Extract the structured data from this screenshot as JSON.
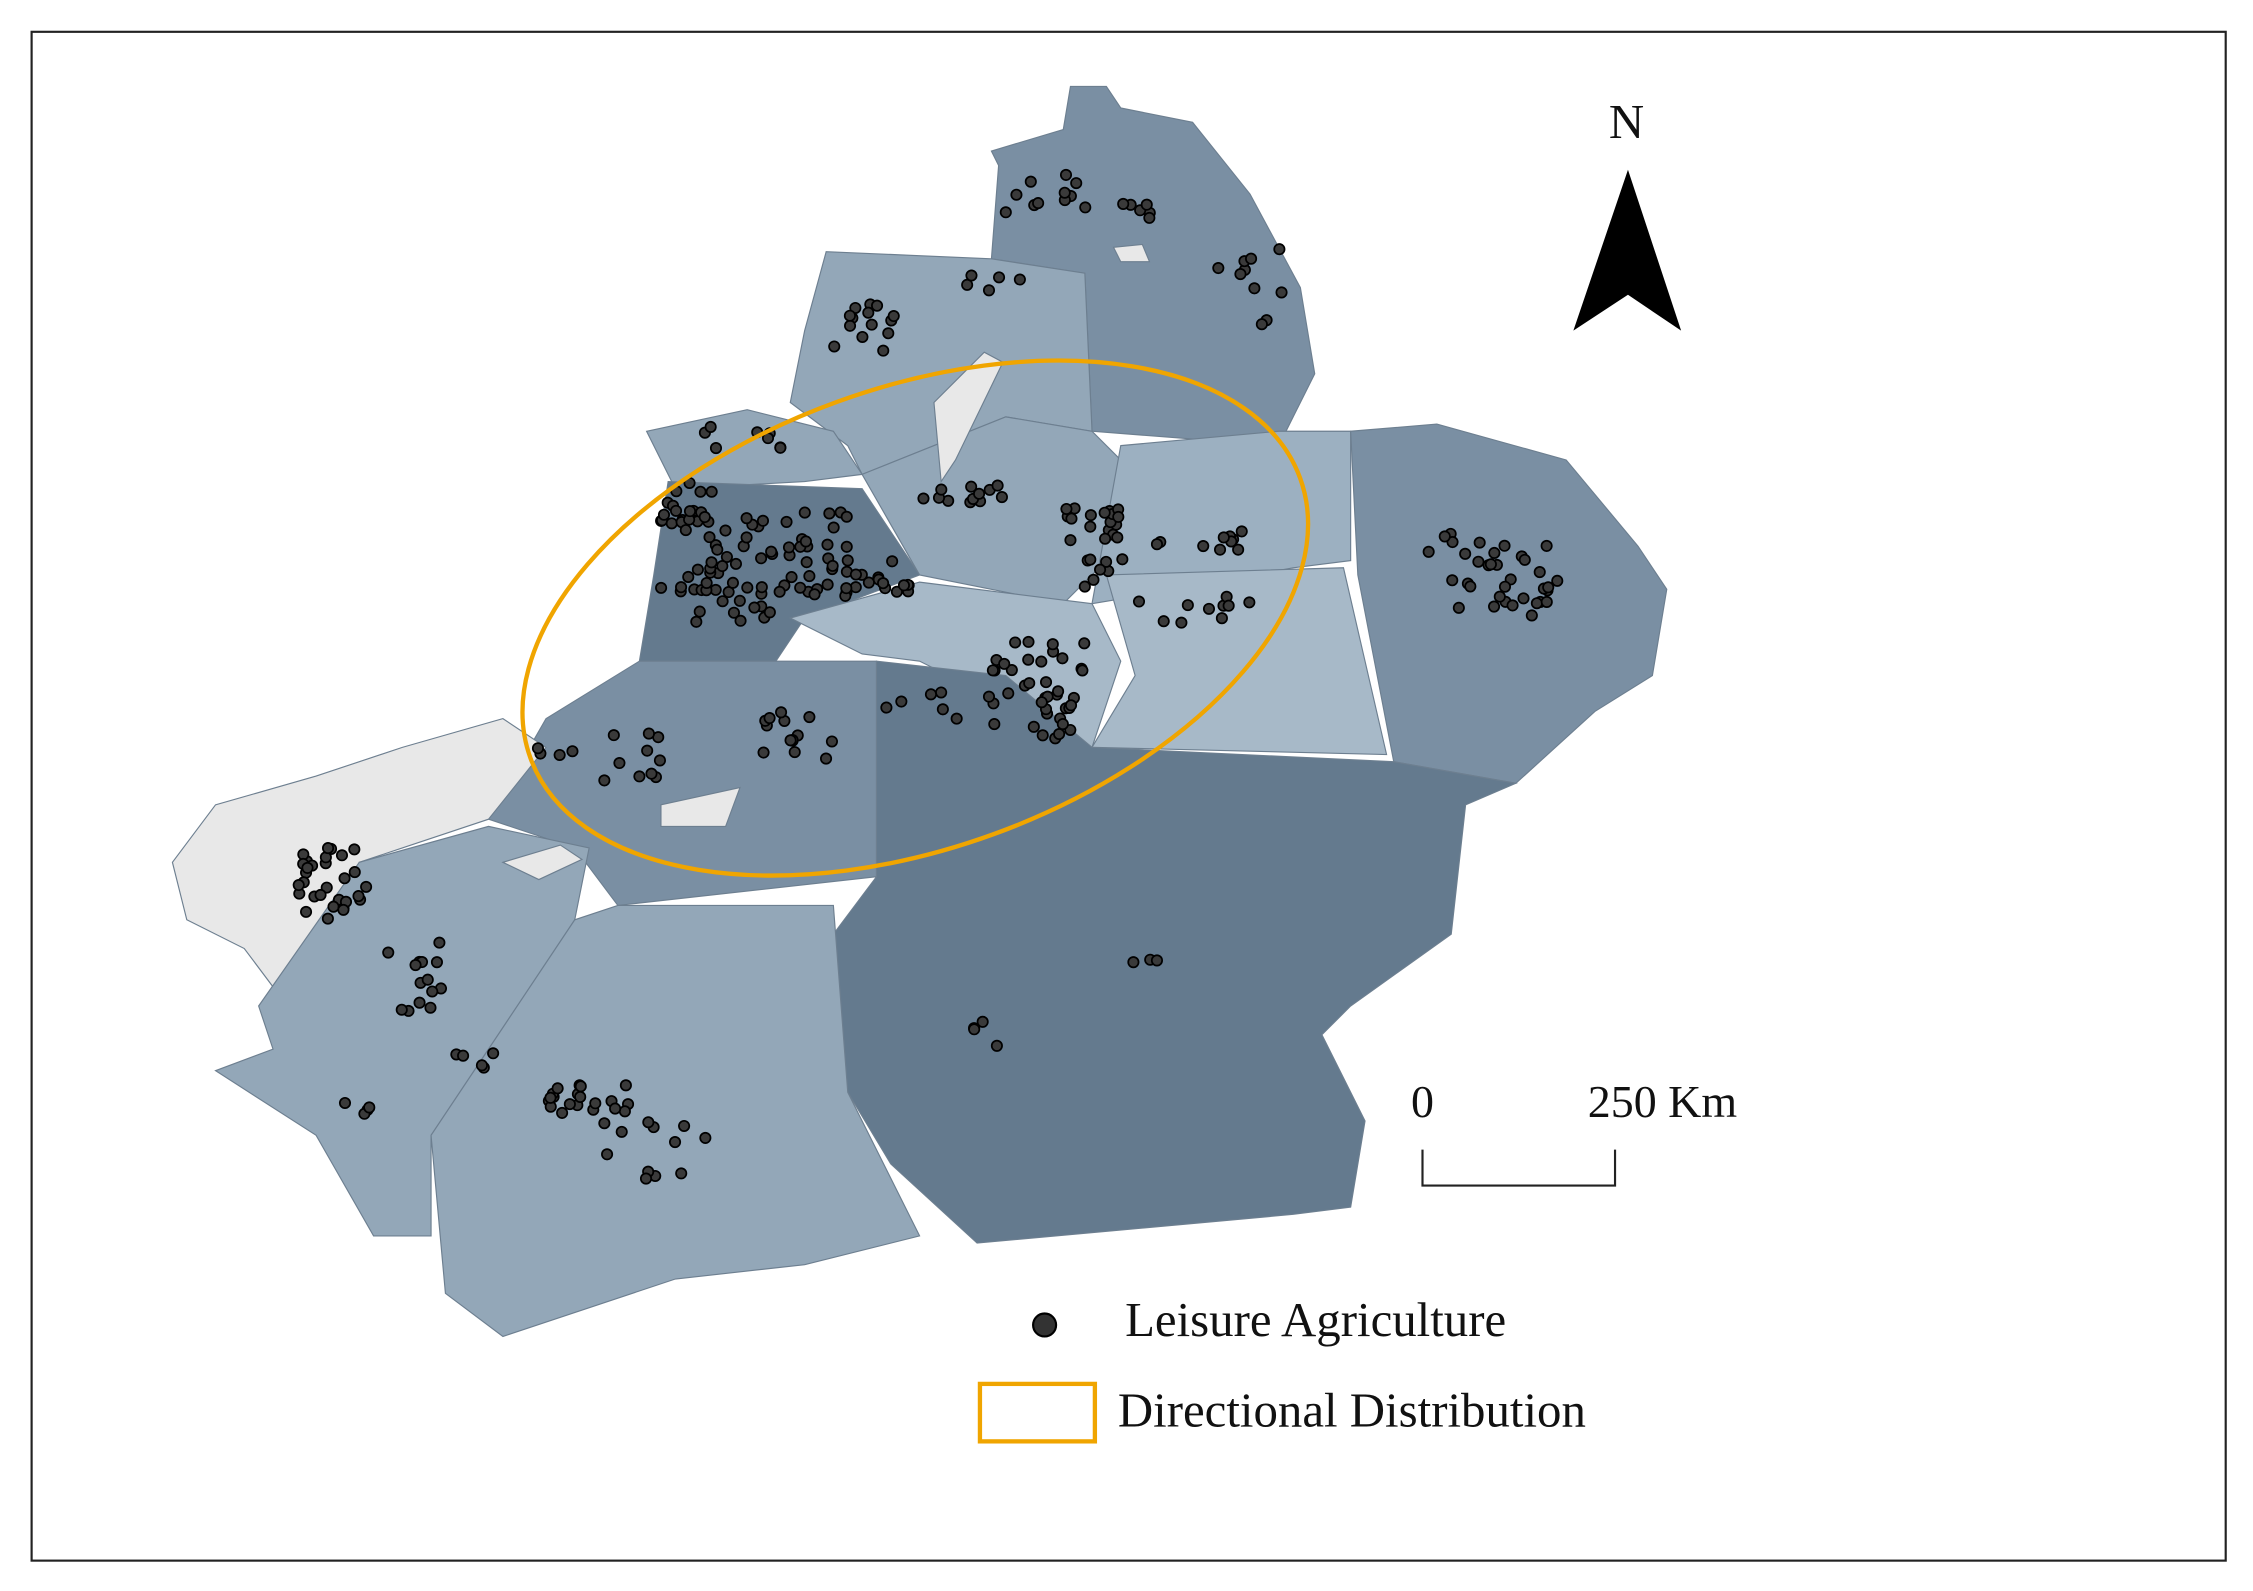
{
  "north_arrow": {
    "label": "N"
  },
  "scale_bar": {
    "labels": [
      "0",
      "250 Km"
    ]
  },
  "legend": {
    "items": [
      {
        "label": "Leisure Agriculture"
      },
      {
        "label": "Directional Distribution"
      }
    ]
  }
}
